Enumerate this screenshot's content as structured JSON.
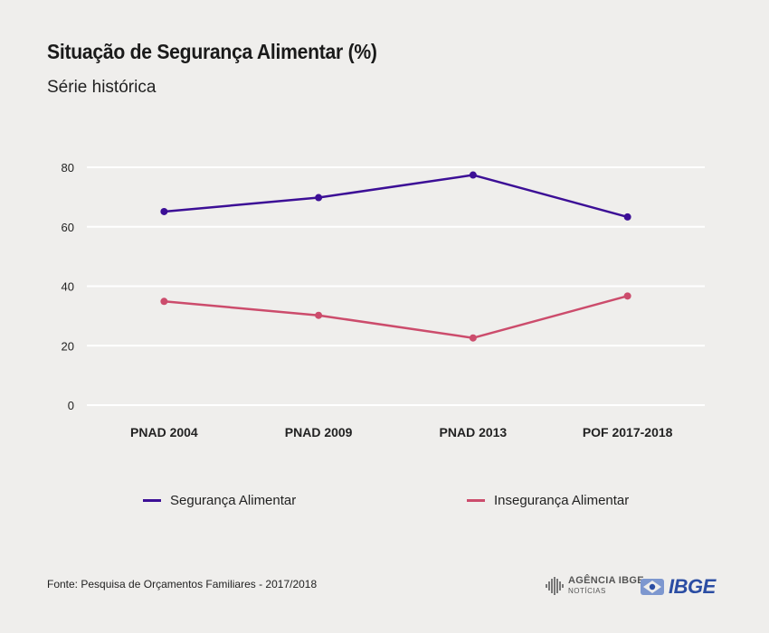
{
  "header": {
    "title": "Situação de Segurança Alimentar (%)",
    "subtitle": "Série histórica"
  },
  "chart_data": {
    "type": "line",
    "categories": [
      "PNAD 2004",
      "PNAD 2009",
      "PNAD 2013",
      "POF 2017-2018"
    ],
    "series": [
      {
        "name": "Segurança Alimentar",
        "color": "#3c0f96",
        "values": [
          65.1,
          69.8,
          77.4,
          63.3
        ]
      },
      {
        "name": "Insegurança Alimentar",
        "color": "#cc4c6c",
        "values": [
          34.9,
          30.2,
          22.6,
          36.7
        ]
      }
    ],
    "ylim": [
      0,
      80
    ],
    "yticks": [
      "0",
      "20",
      "40",
      "60",
      "80"
    ],
    "grid": true,
    "legend_position": "bottom"
  },
  "footer": {
    "source": "Fonte: Pesquisa de Orçamentos Familiares - 2017/2018",
    "logo_agencia_top": "AGÊNCIA IBGE",
    "logo_agencia_bottom": "NOTÍCIAS",
    "logo_ibge": "IBGE"
  }
}
